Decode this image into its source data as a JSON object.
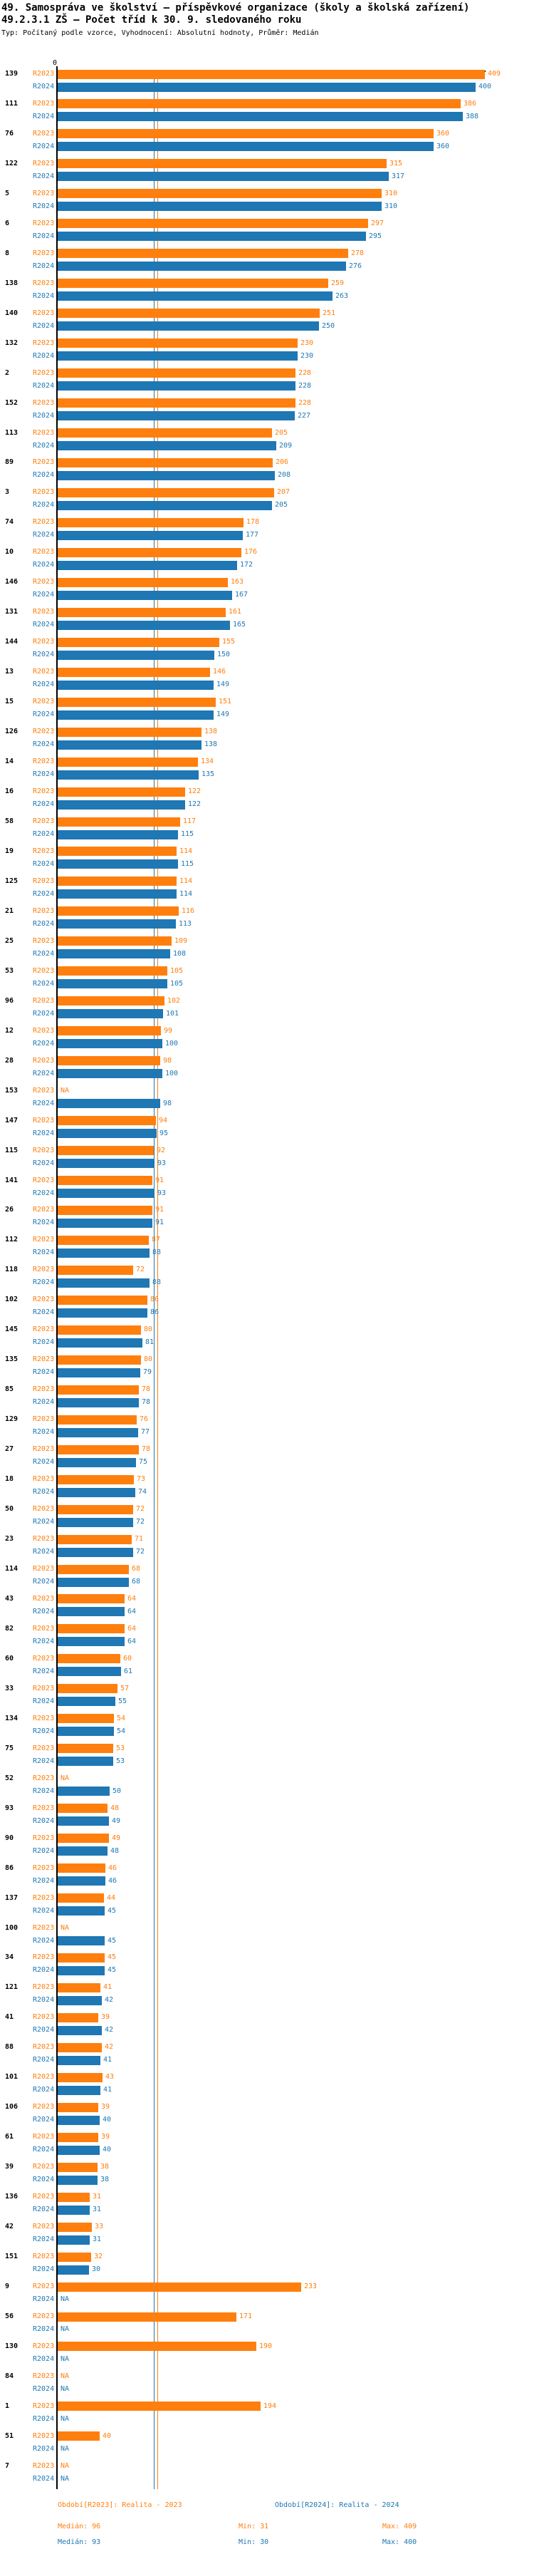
{
  "title_line1": "49. Samospráva ve školství – příspěvkové organizace (školy a školská zařízení)",
  "title_line2": "49.2.3.1 ZŠ – Počet tříd k 30. 9. sledovaného roku",
  "subtitle": "Typ: Počítaný podle vzorce, Vyhodnocení: Absolutní hodnoty, Průměr: Medián",
  "axis": {
    "zero_label": "0",
    "max_value": 409
  },
  "colors": {
    "r2023": "#ff7f0e",
    "r2024": "#1f77b4",
    "axis": "#000000"
  },
  "series_labels": {
    "r2023": "R2023",
    "r2024": "R2024"
  },
  "na_label": "NA",
  "chart_data": {
    "type": "bar",
    "orientation": "horizontal",
    "title": "49.2.3.1 ZŠ – Počet tříd k 30. 9. sledovaného roku",
    "series": [
      "R2023",
      "R2024"
    ],
    "columns": [
      "id",
      "r2023",
      "r2024"
    ],
    "xlim": [
      0,
      410
    ],
    "medians": {
      "r2023": 96,
      "r2024": 93
    },
    "groups": [
      [
        "139",
        409,
        400
      ],
      [
        "111",
        386,
        388
      ],
      [
        "76",
        360,
        360
      ],
      [
        "122",
        315,
        317
      ],
      [
        "5",
        310,
        310
      ],
      [
        "6",
        297,
        295
      ],
      [
        "8",
        278,
        276
      ],
      [
        "138",
        259,
        263
      ],
      [
        "140",
        251,
        250
      ],
      [
        "132",
        230,
        230
      ],
      [
        "2",
        228,
        228
      ],
      [
        "152",
        228,
        227
      ],
      [
        "113",
        205,
        209
      ],
      [
        "89",
        206,
        208
      ],
      [
        "3",
        207,
        205
      ],
      [
        "74",
        178,
        177
      ],
      [
        "10",
        176,
        172
      ],
      [
        "146",
        163,
        167
      ],
      [
        "131",
        161,
        165
      ],
      [
        "144",
        155,
        150
      ],
      [
        "13",
        146,
        149
      ],
      [
        "15",
        151,
        149
      ],
      [
        "126",
        138,
        138
      ],
      [
        "14",
        134,
        135
      ],
      [
        "16",
        122,
        122
      ],
      [
        "58",
        117,
        115
      ],
      [
        "19",
        114,
        115
      ],
      [
        "125",
        114,
        114
      ],
      [
        "21",
        116,
        113
      ],
      [
        "25",
        109,
        108
      ],
      [
        "53",
        105,
        105
      ],
      [
        "96",
        102,
        101
      ],
      [
        "12",
        99,
        100
      ],
      [
        "28",
        98,
        100
      ],
      [
        "153",
        null,
        98
      ],
      [
        "147",
        94,
        95
      ],
      [
        "115",
        92,
        93
      ],
      [
        "141",
        91,
        93
      ],
      [
        "26",
        91,
        91
      ],
      [
        "112",
        87,
        88
      ],
      [
        "118",
        72,
        88
      ],
      [
        "102",
        86,
        86
      ],
      [
        "145",
        80,
        81
      ],
      [
        "135",
        80,
        79
      ],
      [
        "85",
        78,
        78
      ],
      [
        "129",
        76,
        77
      ],
      [
        "27",
        78,
        75
      ],
      [
        "18",
        73,
        74
      ],
      [
        "50",
        72,
        72
      ],
      [
        "23",
        71,
        72
      ],
      [
        "114",
        68,
        68
      ],
      [
        "43",
        64,
        64
      ],
      [
        "82",
        64,
        64
      ],
      [
        "60",
        60,
        61
      ],
      [
        "33",
        57,
        55
      ],
      [
        "134",
        54,
        54
      ],
      [
        "75",
        53,
        53
      ],
      [
        "52",
        null,
        50
      ],
      [
        "93",
        48,
        49
      ],
      [
        "90",
        49,
        48
      ],
      [
        "86",
        46,
        46
      ],
      [
        "137",
        44,
        45
      ],
      [
        "100",
        null,
        45
      ],
      [
        "34",
        45,
        45
      ],
      [
        "121",
        41,
        42
      ],
      [
        "41",
        39,
        42
      ],
      [
        "88",
        42,
        41
      ],
      [
        "101",
        43,
        41
      ],
      [
        "106",
        39,
        40
      ],
      [
        "61",
        39,
        40
      ],
      [
        "39",
        38,
        38
      ],
      [
        "136",
        31,
        31
      ],
      [
        "42",
        33,
        31
      ],
      [
        "151",
        32,
        30
      ],
      [
        "9",
        233,
        null
      ],
      [
        "56",
        171,
        null
      ],
      [
        "130",
        190,
        null
      ],
      [
        "84",
        null,
        null
      ],
      [
        "1",
        194,
        null
      ],
      [
        "51",
        40,
        null
      ],
      [
        "7",
        null,
        null
      ]
    ]
  },
  "footer": {
    "period_r2023": "Období[R2023]: Realita - 2023",
    "period_r2024": "Období[R2024]: Realita - 2024",
    "median_r2023": "Medián: 96",
    "min_r2023": "Min: 31",
    "max_r2023": "Max: 409",
    "median_r2024": "Medián: 93",
    "min_r2024": "Min: 30",
    "max_r2024": "Max: 400"
  }
}
